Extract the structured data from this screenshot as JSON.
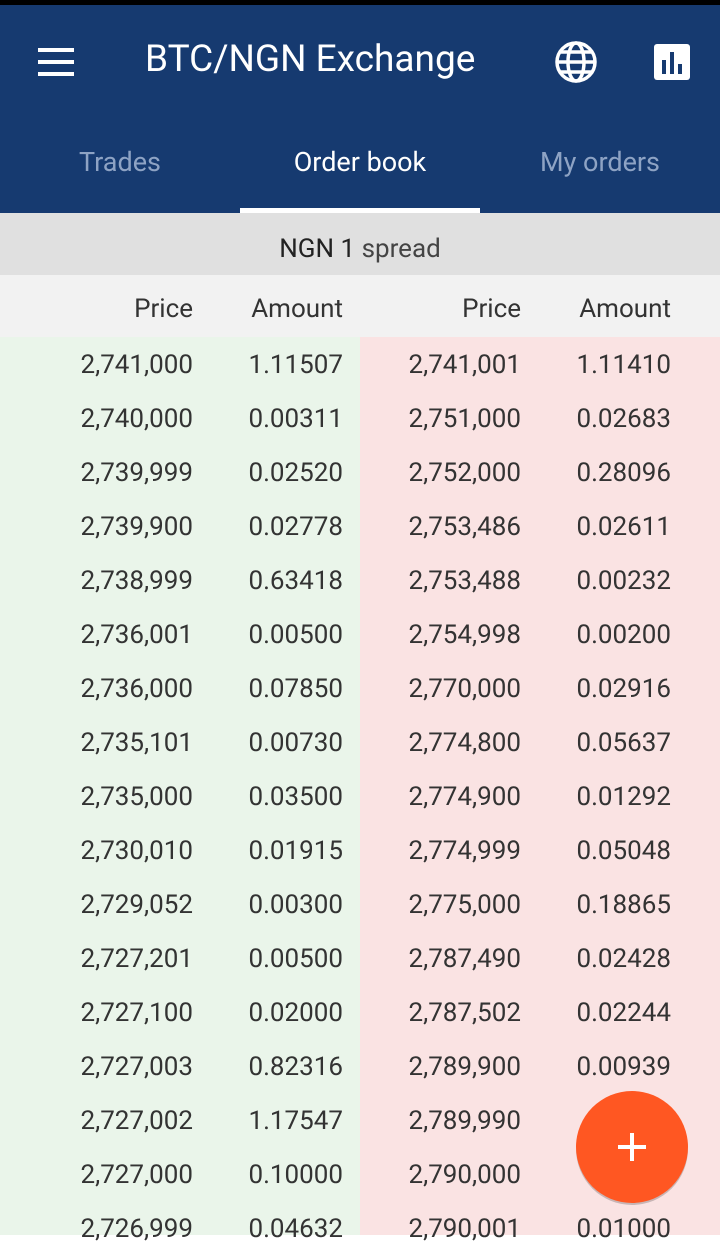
{
  "header": {
    "title": "BTC/NGN Exchange"
  },
  "tabs": [
    "Trades",
    "Order book",
    "My orders"
  ],
  "spread": {
    "amount": "NGN 1",
    "label": "spread"
  },
  "columns": {
    "bids": [
      "Price",
      "Amount"
    ],
    "asks": [
      "Price",
      "Amount"
    ]
  },
  "bids": [
    [
      "2,741,000",
      "1.11507"
    ],
    [
      "2,740,000",
      "0.00311"
    ],
    [
      "2,739,999",
      "0.02520"
    ],
    [
      "2,739,900",
      "0.02778"
    ],
    [
      "2,738,999",
      "0.63418"
    ],
    [
      "2,736,001",
      "0.00500"
    ],
    [
      "2,736,000",
      "0.07850"
    ],
    [
      "2,735,101",
      "0.00730"
    ],
    [
      "2,735,000",
      "0.03500"
    ],
    [
      "2,730,010",
      "0.01915"
    ],
    [
      "2,729,052",
      "0.00300"
    ],
    [
      "2,727,201",
      "0.00500"
    ],
    [
      "2,727,100",
      "0.02000"
    ],
    [
      "2,727,003",
      "0.82316"
    ],
    [
      "2,727,002",
      "1.17547"
    ],
    [
      "2,727,000",
      "0.10000"
    ],
    [
      "2,726,999",
      "0.04632"
    ]
  ],
  "asks": [
    [
      "2,741,001",
      "1.11410"
    ],
    [
      "2,751,000",
      "0.02683"
    ],
    [
      "2,752,000",
      "0.28096"
    ],
    [
      "2,753,486",
      "0.02611"
    ],
    [
      "2,753,488",
      "0.00232"
    ],
    [
      "2,754,998",
      "0.00200"
    ],
    [
      "2,770,000",
      "0.02916"
    ],
    [
      "2,774,800",
      "0.05637"
    ],
    [
      "2,774,900",
      "0.01292"
    ],
    [
      "2,774,999",
      "0.05048"
    ],
    [
      "2,775,000",
      "0.18865"
    ],
    [
      "2,787,490",
      "0.02428"
    ],
    [
      "2,787,502",
      "0.02244"
    ],
    [
      "2,789,900",
      "0.00939"
    ],
    [
      "2,789,990",
      null
    ],
    [
      "2,790,000",
      null
    ],
    [
      "2,790,001",
      "0.01000"
    ]
  ]
}
